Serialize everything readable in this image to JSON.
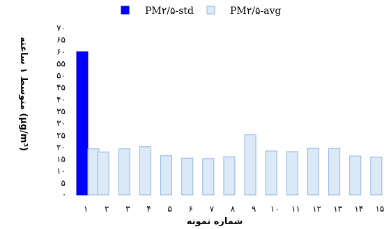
{
  "chart_data": {
    "type": "bar",
    "legend_position": "top",
    "series": [
      {
        "name": "PM۲/۵-std",
        "color": "#0000FF",
        "stroke": "#0000CC",
        "values": [
          60,
          null,
          null,
          null,
          null,
          null,
          null,
          null,
          null,
          null,
          null,
          null,
          null,
          null,
          null
        ]
      },
      {
        "name": "PM۲/۵-avg",
        "color": "#DCE9F7",
        "stroke": "#8FB4E3",
        "values": [
          19.3,
          18,
          19.3,
          20.2,
          16.4,
          15.4,
          15.2,
          16,
          25.2,
          18.4,
          18.1,
          19.5,
          19.5,
          16.3,
          15.8
        ]
      }
    ],
    "categories": [
      "۱",
      "۲",
      "۳",
      "۴",
      "۵",
      "۶",
      "۷",
      "۸",
      "۹",
      "۱۰",
      "۱۱",
      "۱۲",
      "۱۳",
      "۱۴",
      "۱۵"
    ],
    "xlabel": "شماره نمونه",
    "ylabel": "متوسط ۱ ساعته   (μg/m³)",
    "ylim": [
      0,
      70
    ],
    "yticks": [
      0,
      5,
      10,
      15,
      20,
      25,
      30,
      35,
      40,
      45,
      50,
      55,
      60,
      65,
      70
    ],
    "ytick_labels": [
      "·",
      "۵",
      "۱۰",
      "۱۵",
      "۲۰",
      "۲۵",
      "۳۰",
      "۳۵",
      "۴۰",
      "۴۵",
      "۵۰",
      "۵۵",
      "۶۰",
      "۶۵",
      "۷۰"
    ],
    "grid": false
  }
}
